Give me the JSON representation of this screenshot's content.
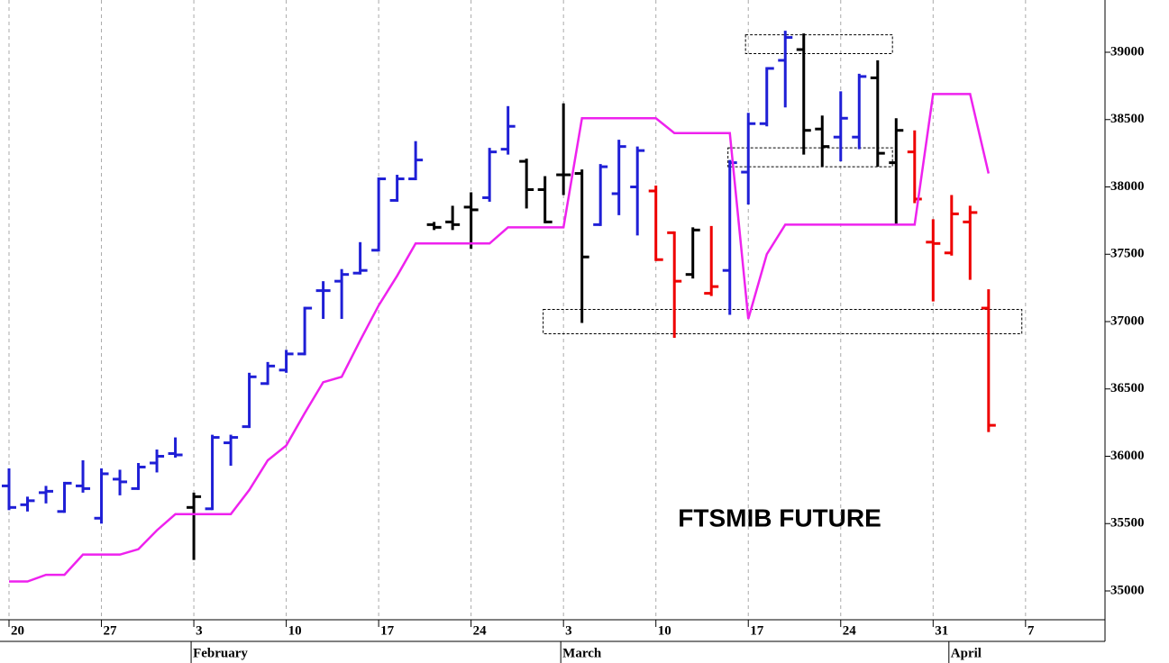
{
  "chart_data": {
    "type": "ohlc",
    "title": "FTSMIB FUTURE",
    "x": [
      0,
      1,
      2,
      3,
      4,
      5,
      6,
      7,
      8,
      9,
      10,
      11,
      12,
      13,
      14,
      15,
      16,
      17,
      18,
      19,
      20,
      21,
      22,
      23,
      24,
      25,
      26,
      27,
      28,
      29,
      30,
      31,
      32,
      33,
      34,
      35,
      36,
      37,
      38,
      39,
      40,
      41,
      42,
      43,
      44,
      45,
      46,
      47,
      48,
      49,
      50,
      51,
      52,
      53
    ],
    "open": [
      35780,
      35640,
      35730,
      35590,
      35780,
      35540,
      35830,
      35760,
      35950,
      36020,
      35620,
      35610,
      36100,
      36220,
      36540,
      36640,
      36760,
      37230,
      37300,
      37360,
      37530,
      37900,
      38060,
      37720,
      37740,
      37850,
      37920,
      38280,
      38190,
      37980,
      38090,
      38100,
      37720,
      37950,
      38000,
      37970,
      37660,
      37350,
      37210,
      37380,
      38110,
      38470,
      38940,
      39020,
      38430,
      38370,
      38370,
      38810,
      38180,
      38260,
      37590,
      37510,
      37740,
      37100
    ],
    "high": [
      35900,
      35690,
      35770,
      35800,
      35960,
      35900,
      35890,
      35940,
      36040,
      36130,
      35720,
      36150,
      36150,
      36610,
      36690,
      36780,
      37100,
      37290,
      37380,
      37580,
      38060,
      38080,
      38330,
      37730,
      37850,
      37950,
      38280,
      38590,
      38200,
      38070,
      38610,
      38120,
      38160,
      38340,
      38290,
      38000,
      37660,
      37690,
      37700,
      38190,
      38540,
      38880,
      39150,
      39130,
      38520,
      38700,
      38830,
      38930,
      38500,
      38410,
      37750,
      37930,
      37850,
      37230
    ],
    "low": [
      35610,
      35600,
      35660,
      35590,
      35740,
      35510,
      35720,
      35760,
      35890,
      36000,
      35240,
      35610,
      35940,
      36220,
      36540,
      36630,
      36760,
      37030,
      37030,
      37360,
      37530,
      37900,
      38060,
      37690,
      37690,
      37550,
      37900,
      38250,
      37850,
      37740,
      37950,
      37000,
      37720,
      37800,
      37650,
      37460,
      36890,
      37330,
      37200,
      37060,
      37880,
      38460,
      38600,
      38250,
      38160,
      38200,
      38290,
      38160,
      37730,
      37890,
      37160,
      37500,
      37320,
      36190
    ],
    "close": [
      35620,
      35670,
      35740,
      35800,
      35760,
      35870,
      35810,
      35920,
      36000,
      36010,
      35700,
      36140,
      36140,
      36590,
      36670,
      36760,
      37100,
      37230,
      37350,
      37380,
      38060,
      38060,
      38200,
      37700,
      37720,
      37830,
      38260,
      38450,
      37980,
      37740,
      38090,
      37480,
      38150,
      38300,
      38270,
      37460,
      37300,
      37680,
      37260,
      38180,
      38470,
      38880,
      39110,
      38420,
      38300,
      38510,
      38820,
      38250,
      38420,
      37910,
      37580,
      37800,
      37810,
      36230
    ],
    "bar_colors": [
      "#1f1fd6",
      "#1f1fd6",
      "#1f1fd6",
      "#1f1fd6",
      "#1f1fd6",
      "#1f1fd6",
      "#1f1fd6",
      "#1f1fd6",
      "#1f1fd6",
      "#1f1fd6",
      "#000000",
      "#1f1fd6",
      "#1f1fd6",
      "#1f1fd6",
      "#1f1fd6",
      "#1f1fd6",
      "#1f1fd6",
      "#1f1fd6",
      "#1f1fd6",
      "#1f1fd6",
      "#1f1fd6",
      "#1f1fd6",
      "#1f1fd6",
      "#000000",
      "#000000",
      "#000000",
      "#1f1fd6",
      "#1f1fd6",
      "#000000",
      "#000000",
      "#000000",
      "#000000",
      "#1f1fd6",
      "#1f1fd6",
      "#1f1fd6",
      "#ee0000",
      "#ee0000",
      "#000000",
      "#ee0000",
      "#1f1fd6",
      "#1f1fd6",
      "#1f1fd6",
      "#1f1fd6",
      "#000000",
      "#000000",
      "#1f1fd6",
      "#1f1fd6",
      "#000000",
      "#000000",
      "#ee0000",
      "#ee0000",
      "#ee0000",
      "#ee0000",
      "#ee0000"
    ],
    "line": {
      "color": "#ee22ee",
      "values": [
        35070,
        35070,
        35120,
        35120,
        35270,
        35270,
        35270,
        35310,
        35450,
        35570,
        35570,
        35570,
        35570,
        35750,
        35970,
        36080,
        36320,
        36550,
        36590,
        36860,
        37120,
        37340,
        37580,
        37580,
        37580,
        37580,
        37580,
        37700,
        37700,
        37700,
        37700,
        38510,
        38510,
        38510,
        38510,
        38510,
        38400,
        38400,
        38400,
        38400,
        37020,
        37500,
        37720,
        37720,
        37720,
        37720,
        37720,
        37720,
        37720,
        37720,
        38690,
        38690,
        38690,
        38100
      ]
    },
    "zones": [
      {
        "xlim": [
          39.85,
          47.8
        ],
        "ylim": [
          38990,
          39130
        ]
      },
      {
        "xlim": [
          38.9,
          47.8
        ],
        "ylim": [
          38150,
          38290
        ]
      },
      {
        "xlim": [
          28.9,
          54.8
        ],
        "ylim": [
          36910,
          37090
        ]
      }
    ],
    "xlim": [
      -0.488,
      59.3
    ],
    "ylim": [
      34786,
      39388
    ],
    "yticks": [
      35000,
      35500,
      36000,
      36500,
      37000,
      37500,
      38000,
      38500,
      39000
    ],
    "xticks": [
      {
        "value": 0,
        "label": "20"
      },
      {
        "value": 5,
        "label": "27"
      },
      {
        "value": 10,
        "label": "3"
      },
      {
        "value": 15,
        "label": "10"
      },
      {
        "value": 20,
        "label": "17"
      },
      {
        "value": 25,
        "label": "24"
      },
      {
        "value": 30,
        "label": "3"
      },
      {
        "value": 35,
        "label": "10"
      },
      {
        "value": 40,
        "label": "17"
      },
      {
        "value": 45,
        "label": "24"
      },
      {
        "value": 50,
        "label": "31"
      },
      {
        "value": 55,
        "label": "7"
      }
    ],
    "month_ticks": [
      {
        "value": 10,
        "label": "February"
      },
      {
        "value": 30,
        "label": "March"
      },
      {
        "value": 51,
        "label": "April"
      }
    ],
    "grid": true
  }
}
